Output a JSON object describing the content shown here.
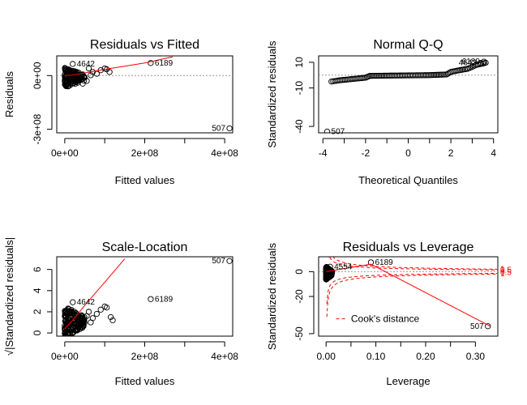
{
  "colors": {
    "points": "#000000",
    "smoother": "#ff0000",
    "reference": "#999999",
    "cook": "#ff0000",
    "ink": "#000000"
  },
  "chart_data": [
    {
      "type": "scatter",
      "title": "Residuals vs Fitted",
      "xlabel": "Fitted values",
      "ylabel": "Residuals",
      "xlim": [
        -20000000.0,
        420000000.0
      ],
      "ylim": [
        -320000000.0,
        110000000.0
      ],
      "x_ticks": [
        0,
        200000000.0,
        400000000.0
      ],
      "x_tick_labels": [
        "0e+00",
        "2e+08",
        "4e+08"
      ],
      "y_ticks": [
        -300000000.0,
        0
      ],
      "y_tick_labels": [
        "-3e+08",
        "0e+00"
      ],
      "reference_line": {
        "y": 0
      },
      "smoother": [
        [
          0,
          0
        ],
        [
          20000000.0,
          3000000.0
        ],
        [
          50000000.0,
          15000000.0
        ],
        [
          100000000.0,
          35000000.0
        ],
        [
          200000000.0,
          70000000.0
        ],
        [
          270000000.0,
          105000000.0
        ]
      ],
      "labeled_points": [
        {
          "label": "4642",
          "x": 20000000.0,
          "y": 65000000.0
        },
        {
          "label": "6189",
          "x": 215000000.0,
          "y": 70000000.0
        },
        {
          "label": "507",
          "x": 412000000.0,
          "y": -295000000.0
        }
      ],
      "cluster": {
        "x_range": [
          0,
          50000000.0
        ],
        "y_range": [
          -50000000.0,
          60000000.0
        ]
      },
      "extra_points": [
        [
          70000000.0,
          20000000.0
        ],
        [
          80000000.0,
          10000000.0
        ],
        [
          90000000.0,
          30000000.0
        ],
        [
          100000000.0,
          40000000.0
        ],
        [
          105000000.0,
          35000000.0
        ],
        [
          112000000.0,
          20000000.0
        ],
        [
          65000000.0,
          2000000.0
        ],
        [
          55000000.0,
          -30000000.0
        ],
        [
          60000000.0,
          40000000.0
        ],
        [
          45000000.0,
          -45000000.0
        ]
      ]
    },
    {
      "type": "scatter",
      "title": "Normal Q-Q",
      "xlabel": "Theoretical Quantiles",
      "ylabel": "Standardized residuals",
      "xlim": [
        -4.2,
        4.2
      ],
      "ylim": [
        -45,
        15
      ],
      "x_ticks": [
        -4,
        -2,
        0,
        2,
        4
      ],
      "x_tick_labels": [
        "-4",
        "-2",
        "0",
        "2",
        "4"
      ],
      "y_ticks": [
        -40,
        -10,
        10
      ],
      "y_tick_labels": [
        "-40",
        "-10",
        "10"
      ],
      "reference_line": {
        "y": 0
      },
      "qq_curve": [
        [
          -3.6,
          -5
        ],
        [
          -3.2,
          -4
        ],
        [
          -2.6,
          -3
        ],
        [
          -2,
          -2
        ],
        [
          -1.8,
          -0.6
        ],
        [
          -1,
          -0.4
        ],
        [
          0,
          -0.2
        ],
        [
          1,
          0
        ],
        [
          1.8,
          0.5
        ],
        [
          2.0,
          2.5
        ],
        [
          2.3,
          3.5
        ],
        [
          2.8,
          5
        ],
        [
          3.2,
          8
        ],
        [
          3.5,
          9
        ],
        [
          3.7,
          10
        ]
      ],
      "labeled_points": [
        {
          "label": "507",
          "x": -3.8,
          "y": -44
        },
        {
          "label": "4642",
          "x": 3.4,
          "y": 9.5
        },
        {
          "label": "6189",
          "x": 3.55,
          "y": 10.5
        }
      ]
    },
    {
      "type": "scatter",
      "title": "Scale-Location",
      "xlabel": "Fitted values",
      "ylabel": "√|Standardized residuals|",
      "xlim": [
        -20000000.0,
        420000000.0
      ],
      "ylim": [
        -0.3,
        7.2
      ],
      "x_ticks": [
        0,
        200000000.0,
        400000000.0
      ],
      "x_tick_labels": [
        "0e+00",
        "2e+08",
        "4e+08"
      ],
      "y_ticks": [
        0,
        2,
        4,
        6
      ],
      "y_tick_labels": [
        "0",
        "2",
        "4",
        "6"
      ],
      "smoother": [
        [
          0,
          0.4
        ],
        [
          20000000.0,
          1.2
        ],
        [
          50000000.0,
          2.6
        ],
        [
          100000000.0,
          4.8
        ],
        [
          150000000.0,
          7.0
        ]
      ],
      "labeled_points": [
        {
          "label": "4642",
          "x": 20000000.0,
          "y": 2.9
        },
        {
          "label": "6189",
          "x": 215000000.0,
          "y": 3.2
        },
        {
          "label": "507",
          "x": 412000000.0,
          "y": 6.8
        }
      ],
      "cluster": {
        "x_range": [
          0,
          50000000.0
        ],
        "y_range": [
          0,
          3
        ]
      },
      "extra_points": [
        [
          70000000.0,
          1.4
        ],
        [
          80000000.0,
          1.8
        ],
        [
          90000000.0,
          2.2
        ],
        [
          100000000.0,
          2.5
        ],
        [
          105000000.0,
          2.4
        ],
        [
          115000000.0,
          1.5
        ],
        [
          65000000.0,
          1.0
        ],
        [
          60000000.0,
          2.0
        ],
        [
          55000000.0,
          1.6
        ],
        [
          120000000.0,
          1.2
        ]
      ]
    },
    {
      "type": "scatter",
      "title": "Residuals vs Leverage",
      "xlabel": "Leverage",
      "ylabel": "Standardized residuals",
      "xlim": [
        -0.015,
        0.345
      ],
      "ylim": [
        -52,
        12
      ],
      "x_ticks": [
        0.0,
        0.1,
        0.2,
        0.3
      ],
      "x_tick_labels": [
        "0.00",
        "0.10",
        "0.20",
        "0.30"
      ],
      "y_ticks": [
        -50,
        -20,
        0
      ],
      "y_tick_labels": [
        "-50",
        "-20",
        "0"
      ],
      "reference_line": {
        "y": 0
      },
      "smoother": [
        [
          0,
          0
        ],
        [
          0.03,
          2
        ],
        [
          0.09,
          6
        ],
        [
          0.33,
          -44
        ]
      ],
      "labeled_points": [
        {
          "label": "4554",
          "x": 0.008,
          "y": 4
        },
        {
          "label": "6189",
          "x": 0.09,
          "y": 7.5
        },
        {
          "label": "507",
          "x": 0.325,
          "y": -44
        }
      ],
      "cook_distance": {
        "legend": "Cook's distance",
        "levels": [
          "0.5",
          "1"
        ],
        "label_values": [
          "0.5",
          "1",
          "0.5",
          "1"
        ]
      },
      "cluster": {
        "x_range": [
          0,
          0.012
        ],
        "y_range": [
          -5,
          6
        ]
      }
    }
  ]
}
